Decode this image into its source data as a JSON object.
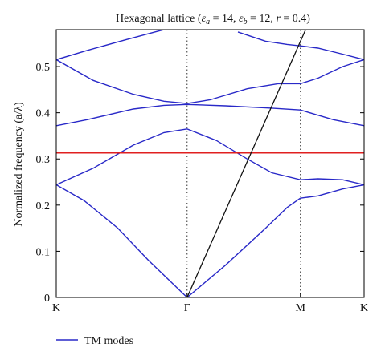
{
  "chart_data": {
    "type": "line",
    "title": "Hexagonal lattice (ε_a = 14, ε_b = 12, r = 0.4)",
    "title_parts": {
      "prefix": "Hexagonal lattice (",
      "ea_sym": "ε",
      "ea_sub": "a",
      "ea_val": " = 14, ",
      "eb_sym": "ε",
      "eb_sub": "b",
      "eb_val": " = 12, ",
      "r_sym": "r",
      "r_val": " = 0.4)"
    },
    "xlabel": "",
    "ylabel": "Normalized frequency (a/λ)",
    "ylim": [
      0,
      0.58
    ],
    "xlim": [
      0,
      1
    ],
    "x_ticks": [
      {
        "label": "K",
        "x": 0
      },
      {
        "label": "Γ",
        "x": 0.425
      },
      {
        "label": "M",
        "x": 0.793
      },
      {
        "label": "K",
        "x": 1
      }
    ],
    "y_ticks": [
      {
        "label": "0",
        "y": 0
      },
      {
        "label": "0.1",
        "y": 0.1
      },
      {
        "label": "0.2",
        "y": 0.2
      },
      {
        "label": "0.3",
        "y": 0.3
      },
      {
        "label": "0.4",
        "y": 0.4
      },
      {
        "label": "0.5",
        "y": 0.5
      }
    ],
    "symmetry_lines_x": [
      0.425,
      0.793
    ],
    "legend": {
      "position": "bottom-left",
      "label": "TM modes",
      "color": "#2929c8"
    },
    "colors": {
      "bands": "#2929c8",
      "hline": "#e02020",
      "light_line": "#111111",
      "axis": "#000000"
    },
    "horizontal_line": {
      "y": 0.313,
      "color": "#e02020"
    },
    "light_line": {
      "x": [
        0.425,
        0.81
      ],
      "y": [
        0,
        0.58
      ]
    },
    "series": [
      {
        "x": [
          0,
          0.09,
          0.2,
          0.3,
          0.425,
          0.55,
          0.68,
          0.75,
          0.793,
          0.85,
          0.93,
          1.0
        ],
        "y": [
          0.244,
          0.21,
          0.15,
          0.08,
          0.0,
          0.07,
          0.15,
          0.195,
          0.215,
          0.22,
          0.235,
          0.244
        ]
      },
      {
        "x": [
          0,
          0.12,
          0.25,
          0.35,
          0.425,
          0.52,
          0.62,
          0.7,
          0.793,
          0.85,
          0.93,
          1.0
        ],
        "y": [
          0.244,
          0.28,
          0.33,
          0.357,
          0.365,
          0.34,
          0.3,
          0.27,
          0.255,
          0.257,
          0.255,
          0.244
        ]
      },
      {
        "x": [
          0,
          0.1,
          0.25,
          0.35,
          0.425,
          0.55,
          0.7,
          0.793,
          0.9,
          1.0
        ],
        "y": [
          0.372,
          0.385,
          0.408,
          0.416,
          0.418,
          0.415,
          0.41,
          0.406,
          0.385,
          0.372
        ]
      },
      {
        "x": [
          0,
          0.12,
          0.25,
          0.35,
          0.425,
          0.5,
          0.62,
          0.72,
          0.793,
          0.85,
          0.93,
          1.0
        ],
        "y": [
          0.515,
          0.47,
          0.44,
          0.425,
          0.42,
          0.428,
          0.452,
          0.463,
          0.463,
          0.475,
          0.5,
          0.515
        ]
      },
      {
        "x": [
          0,
          0.1,
          0.22,
          0.32,
          0.38
        ],
        "y": [
          0.515,
          0.535,
          0.557,
          0.575,
          0.585
        ]
      },
      {
        "x": [
          0.59,
          0.68,
          0.75,
          0.793,
          0.85,
          0.93,
          1.0
        ],
        "y": [
          0.575,
          0.555,
          0.548,
          0.545,
          0.54,
          0.527,
          0.515
        ]
      }
    ]
  }
}
